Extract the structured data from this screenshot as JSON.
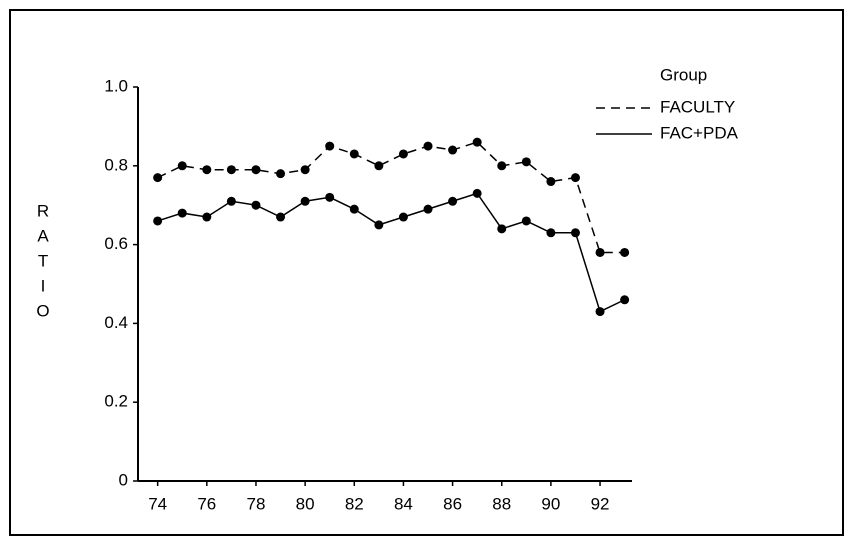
{
  "chart_data": {
    "type": "line",
    "y_label": "RATIO",
    "legend_title": "Group",
    "x": [
      74,
      75,
      76,
      77,
      78,
      79,
      80,
      81,
      82,
      83,
      84,
      85,
      86,
      87,
      88,
      89,
      90,
      91,
      92,
      93
    ],
    "series": [
      {
        "name": "FACULTY",
        "color": "#000000",
        "style": "dashed",
        "values": [
          0.77,
          0.8,
          0.79,
          0.79,
          0.79,
          0.78,
          0.79,
          0.85,
          0.83,
          0.8,
          0.83,
          0.85,
          0.84,
          0.86,
          0.8,
          0.81,
          0.76,
          0.77,
          0.58,
          0.58
        ]
      },
      {
        "name": "FAC+PDA",
        "color": "#000000",
        "style": "solid",
        "values": [
          0.66,
          0.68,
          0.67,
          0.71,
          0.7,
          0.67,
          0.71,
          0.72,
          0.69,
          0.65,
          0.67,
          0.69,
          0.71,
          0.73,
          0.64,
          0.66,
          0.63,
          0.63,
          0.43,
          0.46
        ]
      }
    ],
    "xlim": [
      73.2,
      93.3
    ],
    "xticks": [
      74,
      76,
      78,
      80,
      82,
      84,
      86,
      88,
      90,
      92
    ],
    "ylim": [
      0,
      1
    ],
    "yticks": [
      0,
      0.2,
      0.4,
      0.6,
      0.8,
      {
        "value": 1,
        "label": "1.0"
      }
    ],
    "markers": true,
    "grid": false,
    "legend": "top-right"
  }
}
